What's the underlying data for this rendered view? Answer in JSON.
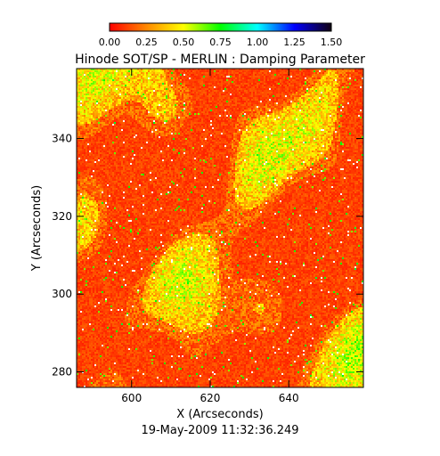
{
  "chart_data": {
    "type": "heatmap",
    "title": "Hinode SOT/SP - MERLIN : Damping Parameter",
    "xlabel": "X (Arcseconds)",
    "ylabel": "Y (Arcseconds)",
    "footer": "19-May-2009 11:32:36.249",
    "xlim": [
      586,
      659
    ],
    "ylim": [
      276,
      358
    ],
    "xticks": [
      600,
      620,
      640
    ],
    "yticks": [
      280,
      300,
      320,
      340
    ],
    "colorbar": {
      "range": [
        0.0,
        1.5
      ],
      "tick_labels": [
        "0.00",
        "0.25",
        "0.50",
        "0.75",
        "1.00",
        "1.25",
        "1.50"
      ],
      "colors": [
        "#ff0000",
        "#ff8800",
        "#ffff00",
        "#00ff00",
        "#00ffff",
        "#0000ff",
        "#110011"
      ]
    },
    "grid": false,
    "value_distribution": {
      "background": "mostly 0.05-0.15 (red)",
      "filaments": "0.25-0.55 (orange-yellow-green)",
      "sparse_outliers": "~1.5 (white/dark)"
    }
  }
}
